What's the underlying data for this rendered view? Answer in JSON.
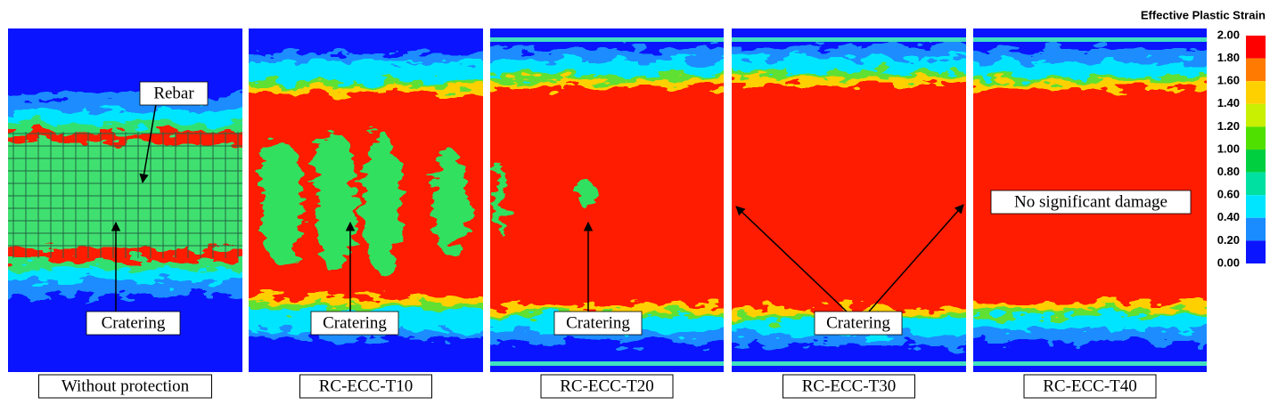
{
  "colorbar": {
    "title": "Effective Plastic Strain",
    "ticks": [
      "2.00",
      "1.80",
      "1.60",
      "1.40",
      "1.20",
      "1.00",
      "0.80",
      "0.60",
      "0.40",
      "0.20",
      "0.00"
    ]
  },
  "panels": [
    {
      "caption": "Without protection",
      "annotations": [
        "Rebar",
        "Cratering"
      ]
    },
    {
      "caption": "RC-ECC-T10",
      "annotations": [
        "Cratering"
      ]
    },
    {
      "caption": "RC-ECC-T20",
      "annotations": [
        "Cratering"
      ]
    },
    {
      "caption": "RC-ECC-T30",
      "annotations": [
        "Cratering"
      ]
    },
    {
      "caption": "RC-ECC-T40",
      "annotations": [
        "No significant damage"
      ]
    }
  ]
}
